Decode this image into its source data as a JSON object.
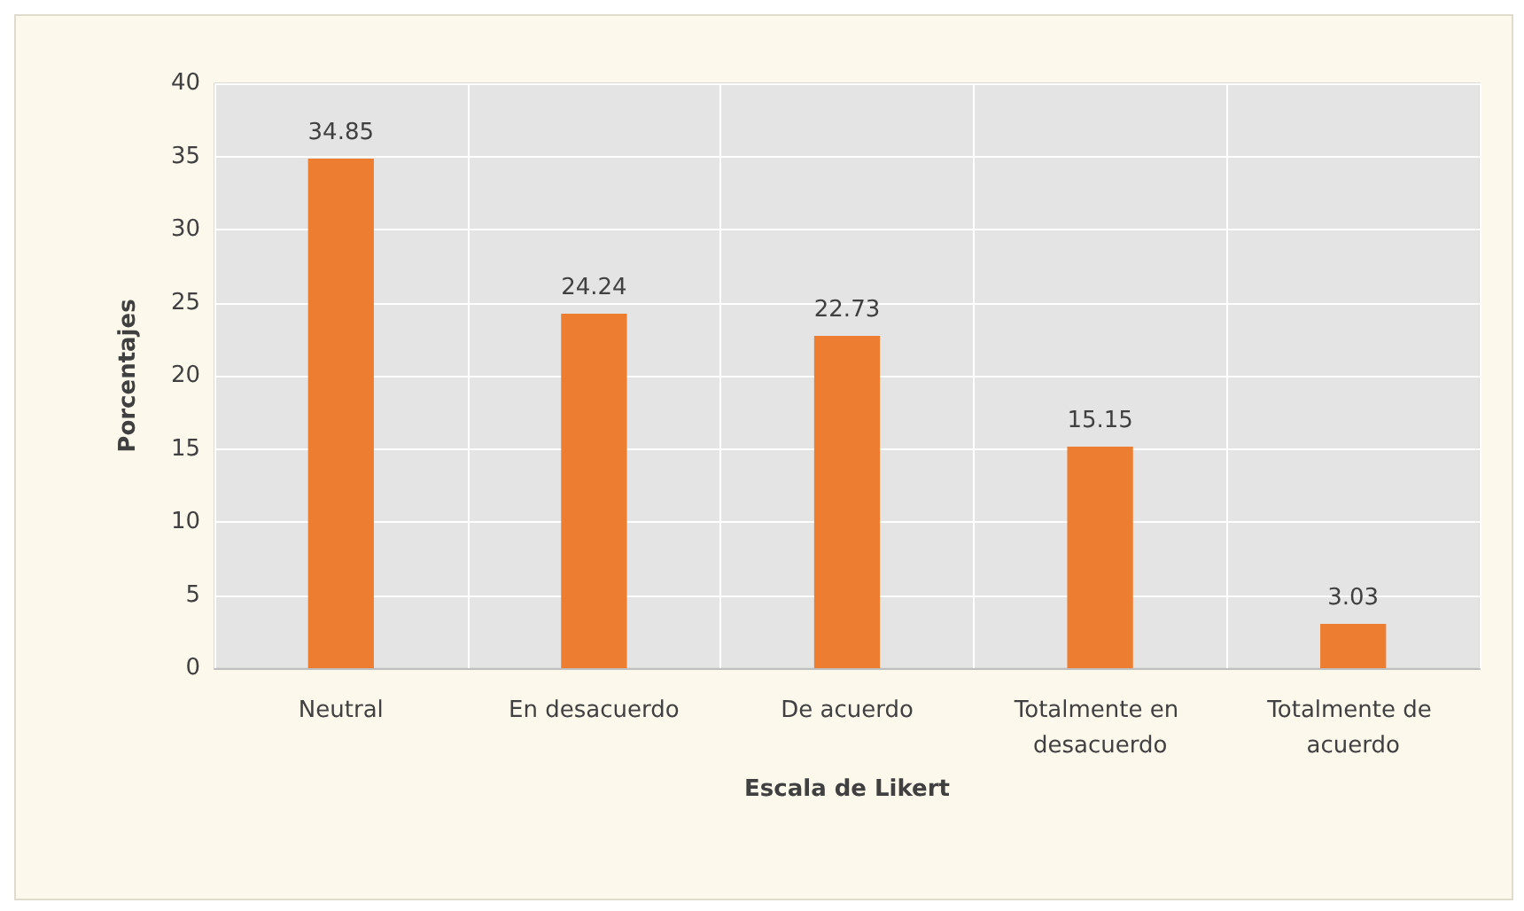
{
  "chart_data": {
    "type": "bar",
    "xlabel": "Escala de Likert",
    "ylabel": "Porcentajes",
    "categories": [
      "Neutral",
      "En desacuerdo",
      "De acuerdo",
      "Totalmente en desacuerdo",
      "Totalmente de acuerdo"
    ],
    "values": [
      34.85,
      24.24,
      22.73,
      15.15,
      3.03
    ],
    "color": "#ed7d31",
    "ylim": [
      0,
      40
    ],
    "yticks": [
      0,
      5,
      10,
      15,
      20,
      25,
      30,
      35,
      40
    ],
    "grid": true,
    "data_labels": true
  }
}
